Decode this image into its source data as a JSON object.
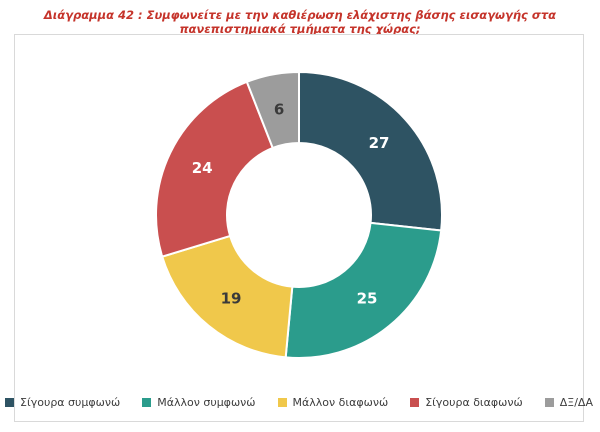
{
  "title": "Διάγραμμα 42 : Συμφωνείτε με την καθιέρωση ελάχιστης βάσης εισαγωγής στα πανεπιστημιακά τμήματα της χώρας;",
  "chart_data": {
    "type": "pie",
    "subtype": "donut",
    "title": "Διάγραμμα 42 : Συμφωνείτε με την καθιέρωση ελάχιστης βάσης εισαγωγής στα πανεπιστημιακά τμήματα της χώρας;",
    "start_angle_deg": 0,
    "direction": "clockwise",
    "legend_position": "bottom",
    "segments": [
      {
        "label": "Σίγουρα συμφωνώ",
        "value": 27,
        "color": "#2e5363",
        "label_color": "#ffffff"
      },
      {
        "label": "Μάλλον συμφωνώ",
        "value": 25,
        "color": "#2b9c8c",
        "label_color": "#ffffff"
      },
      {
        "label": "Μάλλον διαφωνώ",
        "value": 19,
        "color": "#f0c84b",
        "label_color": "#3a3a3a"
      },
      {
        "label": "Σίγουρα διαφωνώ",
        "value": 24,
        "color": "#c94f4f",
        "label_color": "#ffffff"
      },
      {
        "label": "ΔΞ/ΔΑ",
        "value": 6,
        "color": "#9c9c9c",
        "label_color": "#3a3a3a"
      }
    ]
  },
  "colors": {
    "title_text": "#c5342b",
    "card_border": "#d9d9d9",
    "legend_text": "#3c3c3c",
    "background": "#ffffff",
    "segment_separator": "#ffffff"
  }
}
